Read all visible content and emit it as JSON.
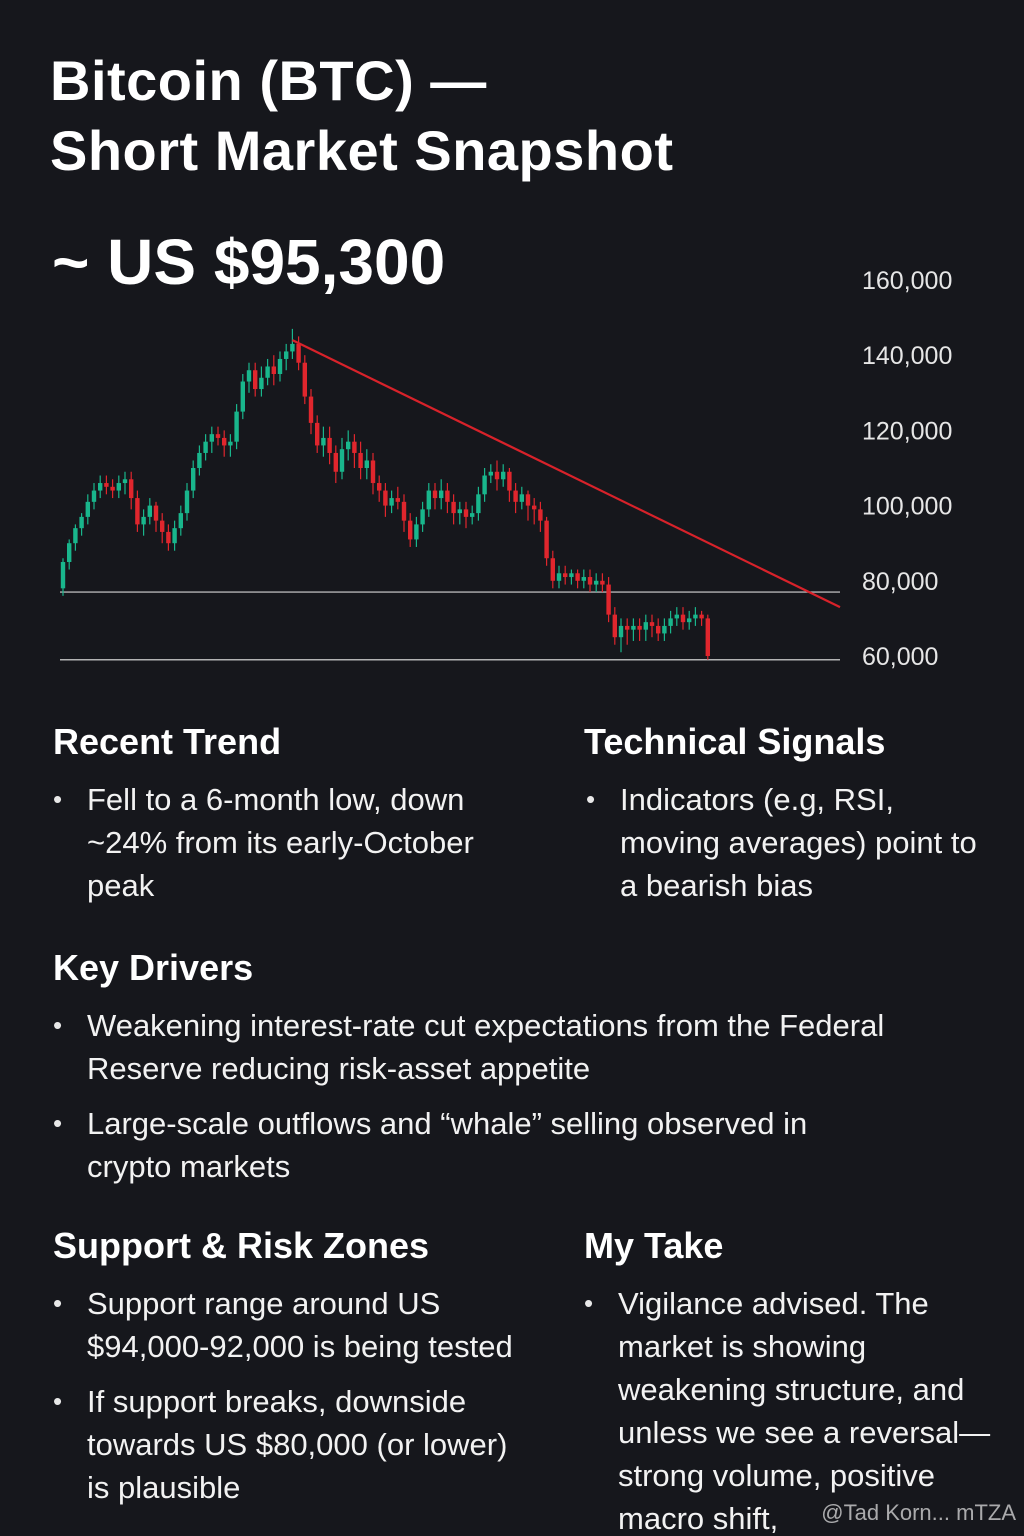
{
  "header": {
    "title_line1": "Bitcoin (BTC) —",
    "title_line2": "Short Market Snapshot",
    "price": "~ US $95,300"
  },
  "chart_data": {
    "type": "candlestick",
    "title": "",
    "xlabel": "",
    "ylabel": "",
    "ylim": [
      60000,
      160000
    ],
    "y_ticks": [
      "160,000",
      "140,000",
      "120,000",
      "100,000",
      "80,000",
      "60,000"
    ],
    "y_tick_values": [
      160000,
      140000,
      120000,
      100000,
      80000,
      60000
    ],
    "grid": false,
    "horizontal_lines": [
      77000,
      59000
    ],
    "trendline": {
      "from": 144000,
      "to": 73000
    },
    "colors": {
      "up": "#19b68c",
      "down": "#e0262d",
      "trend": "#d8222a",
      "line": "#cfcfcf"
    },
    "candles": [
      [
        78000,
        85000,
        76000,
        86000
      ],
      [
        85000,
        90000,
        83000,
        91000
      ],
      [
        90000,
        94000,
        88000,
        95000
      ],
      [
        94000,
        97000,
        92000,
        98000
      ],
      [
        97000,
        101000,
        95000,
        103000
      ],
      [
        101000,
        104000,
        99000,
        106000
      ],
      [
        104000,
        106000,
        102000,
        108000
      ],
      [
        106000,
        105000,
        103000,
        108000
      ],
      [
        105000,
        104000,
        102000,
        107000
      ],
      [
        104000,
        106000,
        102000,
        108000
      ],
      [
        106000,
        107000,
        103000,
        109000
      ],
      [
        107000,
        102000,
        99000,
        109000
      ],
      [
        102000,
        95000,
        93000,
        104000
      ],
      [
        95000,
        97000,
        92000,
        99000
      ],
      [
        97000,
        100000,
        95000,
        102000
      ],
      [
        100000,
        96000,
        93000,
        101000
      ],
      [
        96000,
        93000,
        90000,
        98000
      ],
      [
        93000,
        90000,
        88000,
        95000
      ],
      [
        90000,
        94000,
        88000,
        96000
      ],
      [
        94000,
        98000,
        92000,
        100000
      ],
      [
        98000,
        104000,
        96000,
        106000
      ],
      [
        104000,
        110000,
        102000,
        112000
      ],
      [
        110000,
        114000,
        108000,
        116000
      ],
      [
        114000,
        117000,
        112000,
        119000
      ],
      [
        117000,
        119000,
        114000,
        121000
      ],
      [
        119000,
        118000,
        116000,
        121000
      ],
      [
        118000,
        116000,
        113000,
        120000
      ],
      [
        116000,
        117000,
        113000,
        119000
      ],
      [
        117000,
        125000,
        115000,
        127000
      ],
      [
        125000,
        133000,
        123000,
        135000
      ],
      [
        133000,
        136000,
        130000,
        138000
      ],
      [
        136000,
        131000,
        129000,
        138000
      ],
      [
        131000,
        134000,
        129000,
        137000
      ],
      [
        134000,
        137000,
        132000,
        139000
      ],
      [
        137000,
        135000,
        132000,
        140000
      ],
      [
        135000,
        139000,
        133000,
        141000
      ],
      [
        139000,
        141000,
        136000,
        143000
      ],
      [
        141000,
        143000,
        139000,
        147000
      ],
      [
        143000,
        138000,
        136000,
        145000
      ],
      [
        138000,
        129000,
        127000,
        140000
      ],
      [
        129000,
        122000,
        119000,
        131000
      ],
      [
        122000,
        116000,
        114000,
        124000
      ],
      [
        116000,
        118000,
        113000,
        121000
      ],
      [
        118000,
        114000,
        111000,
        121000
      ],
      [
        114000,
        109000,
        106000,
        116000
      ],
      [
        109000,
        115000,
        107000,
        118000
      ],
      [
        115000,
        117000,
        112000,
        120000
      ],
      [
        117000,
        114000,
        110000,
        119000
      ],
      [
        114000,
        110000,
        107000,
        117000
      ],
      [
        110000,
        112000,
        107000,
        115000
      ],
      [
        112000,
        106000,
        103000,
        114000
      ],
      [
        106000,
        104000,
        101000,
        108000
      ],
      [
        104000,
        100000,
        97000,
        106000
      ],
      [
        100000,
        102000,
        98000,
        104000
      ],
      [
        102000,
        101000,
        99000,
        105000
      ],
      [
        101000,
        96000,
        93000,
        103000
      ],
      [
        96000,
        91000,
        89000,
        98000
      ],
      [
        91000,
        95000,
        89000,
        97000
      ],
      [
        95000,
        99000,
        93000,
        101000
      ],
      [
        99000,
        104000,
        97000,
        106000
      ],
      [
        104000,
        102000,
        99000,
        106000
      ],
      [
        102000,
        104000,
        99000,
        107000
      ],
      [
        104000,
        101000,
        98000,
        106000
      ],
      [
        101000,
        98000,
        95000,
        103000
      ],
      [
        98000,
        99000,
        95000,
        101000
      ],
      [
        99000,
        97000,
        94000,
        101000
      ],
      [
        97000,
        98000,
        95000,
        100000
      ],
      [
        98000,
        103000,
        96000,
        105000
      ],
      [
        103000,
        108000,
        101000,
        110000
      ],
      [
        108000,
        109000,
        106000,
        111000
      ],
      [
        109000,
        107000,
        104000,
        112000
      ],
      [
        107000,
        109000,
        105000,
        111000
      ],
      [
        109000,
        104000,
        101000,
        110000
      ],
      [
        104000,
        101000,
        98000,
        106000
      ],
      [
        101000,
        103000,
        99000,
        105000
      ],
      [
        103000,
        100000,
        96000,
        104000
      ],
      [
        100000,
        99000,
        95000,
        102000
      ],
      [
        99000,
        96000,
        93000,
        101000
      ],
      [
        96000,
        86000,
        84000,
        97000
      ],
      [
        86000,
        80000,
        78000,
        88000
      ],
      [
        80000,
        82000,
        78000,
        84000
      ],
      [
        82000,
        81000,
        79000,
        84000
      ],
      [
        81000,
        82000,
        79000,
        83000
      ],
      [
        82000,
        80000,
        78000,
        83000
      ],
      [
        80000,
        81000,
        78000,
        83000
      ],
      [
        81000,
        79000,
        77000,
        83000
      ],
      [
        79000,
        80000,
        77000,
        82000
      ],
      [
        80000,
        79000,
        77000,
        82000
      ],
      [
        79000,
        71000,
        69000,
        81000
      ],
      [
        71000,
        65000,
        63000,
        73000
      ],
      [
        65000,
        68000,
        61000,
        70000
      ],
      [
        68000,
        67000,
        63000,
        70000
      ],
      [
        67000,
        68000,
        64000,
        70000
      ],
      [
        68000,
        67000,
        64000,
        70000
      ],
      [
        67000,
        69000,
        64000,
        71000
      ],
      [
        69000,
        68000,
        65000,
        71000
      ],
      [
        68000,
        66000,
        64000,
        70000
      ],
      [
        66000,
        68000,
        64000,
        70000
      ],
      [
        68000,
        70000,
        66000,
        72000
      ],
      [
        70000,
        71000,
        68000,
        73000
      ],
      [
        71000,
        69000,
        67000,
        73000
      ],
      [
        69000,
        70000,
        67000,
        72000
      ],
      [
        70000,
        71000,
        68000,
        73000
      ],
      [
        71000,
        70000,
        68000,
        72000
      ],
      [
        70000,
        60000,
        59000,
        71000
      ]
    ]
  },
  "sections": {
    "recent_trend": {
      "title": "Recent Trend",
      "bullets": [
        "Fell to a 6-month low, down ~24% from its early-October peak"
      ]
    },
    "technical_signals": {
      "title": "Technical Signals",
      "bullets": [
        "Indicators (e.g, RSI, moving averages) point to a bearish bias"
      ]
    },
    "key_drivers": {
      "title": "Key Drivers",
      "bullets": [
        "Weakening interest-rate cut expectations from the Federal Reserve reducing risk-asset appetite",
        "Large-scale outflows and “whale” selling observed in crypto markets"
      ]
    },
    "support_risk": {
      "title": "Support & Risk Zones",
      "bullets": [
        "Support range around US $94,000-92,000 is being tested",
        "If support breaks, downside towards US $80,000 (or lower) is plausible"
      ]
    },
    "my_take": {
      "title": "My Take",
      "bullets": [
        "Vigilance advised. The market is showing weakening structure, and unless we see a reversal—strong volume, positive macro shift,"
      ]
    }
  },
  "watermark": "@Tad Korn... mTZA"
}
